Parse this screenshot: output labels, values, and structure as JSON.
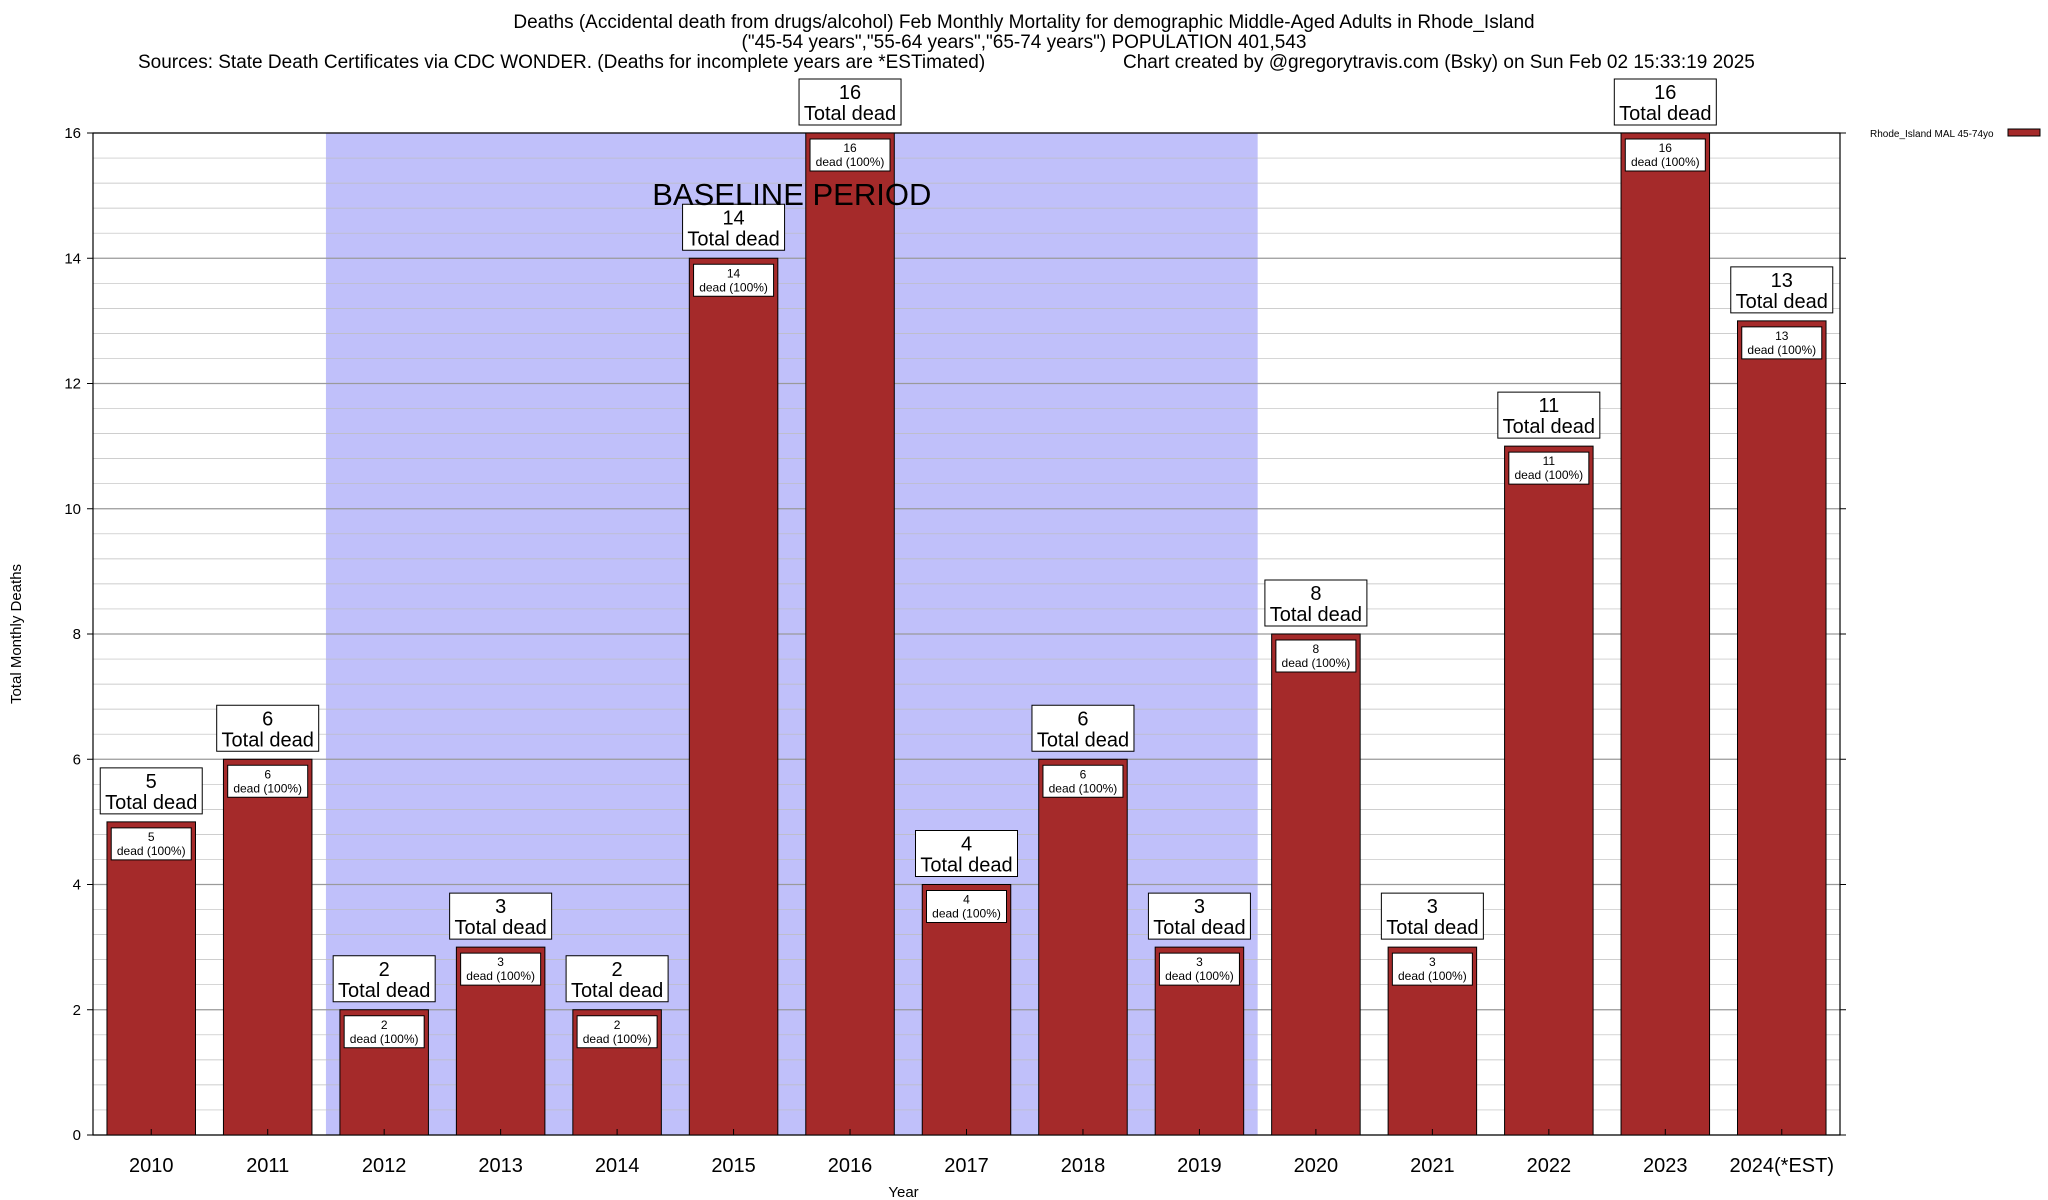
{
  "title": {
    "line1": "Deaths (Accidental death from drugs/alcohol) Feb Monthly Mortality for demographic Middle-Aged Adults in Rhode_Island",
    "line2": "(\"45-54 years\",\"55-64 years\",\"65-74 years\") POPULATION 401,543",
    "sources": "Sources: State Death Certificates via CDC WONDER. (Deaths for incomplete years are *ESTimated)",
    "credit": "Chart created by @gregorytravis.com (Bsky) on Sun Feb 02 15:33:19 2025"
  },
  "chart_data": {
    "type": "bar",
    "xlabel": "Year",
    "ylabel": "Total Monthly Deaths",
    "ylim": [
      0,
      16
    ],
    "y_ticks": [
      0,
      2,
      4,
      6,
      8,
      10,
      12,
      14,
      16
    ],
    "grid": true,
    "categories": [
      "2010",
      "2011",
      "2012",
      "2013",
      "2014",
      "2015",
      "2016",
      "2017",
      "2018",
      "2019",
      "2020",
      "2021",
      "2022",
      "2023",
      "2024(*EST)"
    ],
    "series": [
      {
        "name": "Rhode_Island MAL 45-74yo",
        "values": [
          5,
          6,
          2,
          3,
          2,
          14,
          16,
          4,
          6,
          3,
          8,
          3,
          11,
          16,
          13
        ]
      }
    ],
    "total_label_text": "Total dead",
    "inner_label_text": "dead (100%)",
    "baseline": {
      "label": "BASELINE PERIOD",
      "from": "2012",
      "to": "2019"
    },
    "legend_position": "top-right",
    "colors": {
      "bar": "#a52a2a",
      "baseline_shade": "#c0c0fa",
      "grid": "#bdbdbd"
    }
  }
}
